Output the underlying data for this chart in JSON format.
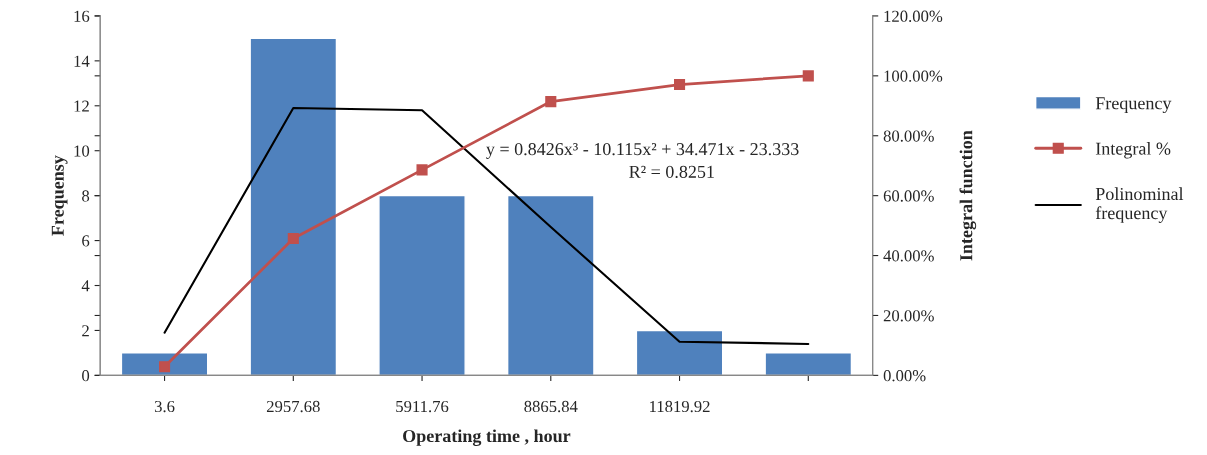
{
  "chart_data": {
    "type": "bar",
    "xlabel": "Operating time , hour",
    "ylabel": "Frequensy",
    "y2label": "Integral function",
    "categories": [
      "3.6",
      "2957.68",
      "5911.76",
      "8865.84",
      "11819.92",
      null
    ],
    "series": [
      {
        "name": "Frequency",
        "color": "#4f81bd",
        "values": [
          1,
          15,
          8,
          8,
          2,
          1
        ]
      },
      {
        "name": "Integral %",
        "type": "line",
        "axis": "y2",
        "color": "#c0504d",
        "marker": "square",
        "values": [
          2.9,
          45.7,
          68.6,
          91.4,
          97.1,
          100
        ]
      },
      {
        "name": "Polinominal\nfrequency",
        "type": "line",
        "color": "#000000",
        "marker": "none",
        "values": [
          1.9,
          11.9,
          11.8,
          6.6,
          1.5,
          1.4
        ]
      }
    ],
    "ylim": [
      0,
      16
    ],
    "yticks": [
      0,
      2,
      4,
      6,
      8,
      10,
      12,
      14,
      16
    ],
    "y2lim": [
      0,
      120
    ],
    "y2ticks": [
      {
        "value": 0,
        "label": "0.00%"
      },
      {
        "value": 20,
        "label": "20.00%"
      },
      {
        "value": 40,
        "label": "40.00%"
      },
      {
        "value": 60,
        "label": "60.00%"
      },
      {
        "value": 80,
        "label": "80.00%"
      },
      {
        "value": 100,
        "label": "100.00%"
      },
      {
        "value": 120,
        "label": "120.00%"
      }
    ],
    "annotations": [
      "y = 0.8426x³ - 10.115x² + 34.471x - 23.333",
      "R² = 0.8251"
    ],
    "grid": false,
    "legend": "right"
  }
}
